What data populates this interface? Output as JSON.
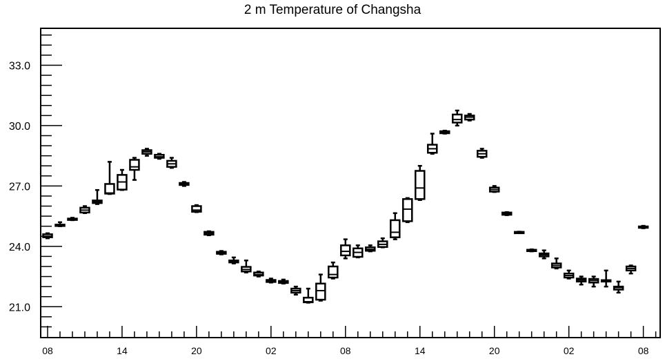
{
  "chart_data": {
    "type": "boxplot",
    "title": "2 m Temperature of Changsha",
    "xlabel": "",
    "ylabel": "",
    "ylim": [
      19.5,
      34.8
    ],
    "yticks": [
      21.0,
      24.0,
      27.0,
      30.0,
      33.0
    ],
    "ytick_labels": [
      "21.0",
      "24.0",
      "27.0",
      "30.0",
      "33.0"
    ],
    "x_hour_range": [
      -0.5,
      49.3
    ],
    "xticks": [
      0,
      6,
      12,
      18,
      24,
      30,
      36,
      42,
      48
    ],
    "xtick_labels": [
      "08",
      "14",
      "20",
      "02",
      "08",
      "14",
      "20",
      "02",
      "08"
    ],
    "grid": false,
    "boxes": [
      {
        "hour": 0,
        "min": 24.4,
        "q1": 24.45,
        "median": 24.5,
        "q3": 24.6,
        "max": 24.65
      },
      {
        "hour": 1,
        "min": 25.0,
        "q1": 25.02,
        "median": 25.05,
        "q3": 25.08,
        "max": 25.2
      },
      {
        "hour": 2,
        "min": 25.3,
        "q1": 25.33,
        "median": 25.35,
        "q3": 25.38,
        "max": 25.42
      },
      {
        "hour": 3,
        "min": 25.65,
        "q1": 25.68,
        "median": 25.8,
        "q3": 25.92,
        "max": 26.0
      },
      {
        "hour": 4,
        "min": 26.1,
        "q1": 26.15,
        "median": 26.22,
        "q3": 26.28,
        "max": 26.8
      },
      {
        "hour": 5,
        "min": 26.6,
        "q1": 26.62,
        "median": 26.65,
        "q3": 27.1,
        "max": 28.2
      },
      {
        "hour": 6,
        "min": 26.8,
        "q1": 26.82,
        "median": 27.2,
        "q3": 27.55,
        "max": 27.8
      },
      {
        "hour": 7,
        "min": 27.3,
        "q1": 27.8,
        "median": 27.95,
        "q3": 28.3,
        "max": 28.4
      },
      {
        "hour": 8,
        "min": 28.5,
        "q1": 28.6,
        "median": 28.7,
        "q3": 28.78,
        "max": 28.85
      },
      {
        "hour": 9,
        "min": 28.35,
        "q1": 28.4,
        "median": 28.45,
        "q3": 28.55,
        "max": 28.6
      },
      {
        "hour": 10,
        "min": 27.9,
        "q1": 27.95,
        "median": 28.1,
        "q3": 28.25,
        "max": 28.4
      },
      {
        "hour": 11,
        "min": 27.0,
        "q1": 27.05,
        "median": 27.1,
        "q3": 27.15,
        "max": 27.2
      },
      {
        "hour": 12,
        "min": 25.7,
        "q1": 25.72,
        "median": 25.8,
        "q3": 26.0,
        "max": 26.05
      },
      {
        "hour": 13,
        "min": 24.55,
        "q1": 24.58,
        "median": 24.65,
        "q3": 24.72,
        "max": 24.75
      },
      {
        "hour": 14,
        "min": 23.6,
        "q1": 23.63,
        "median": 23.7,
        "q3": 23.73,
        "max": 23.77
      },
      {
        "hour": 15,
        "min": 23.15,
        "q1": 23.2,
        "median": 23.25,
        "q3": 23.3,
        "max": 23.45
      },
      {
        "hour": 16,
        "min": 22.7,
        "q1": 22.75,
        "median": 22.85,
        "q3": 22.98,
        "max": 23.3
      },
      {
        "hour": 17,
        "min": 22.5,
        "q1": 22.55,
        "median": 22.6,
        "q3": 22.7,
        "max": 22.75
      },
      {
        "hour": 18,
        "min": 22.2,
        "q1": 22.23,
        "median": 22.28,
        "q3": 22.33,
        "max": 22.4
      },
      {
        "hour": 19,
        "min": 22.15,
        "q1": 22.18,
        "median": 22.22,
        "q3": 22.28,
        "max": 22.35
      },
      {
        "hour": 20,
        "min": 21.6,
        "q1": 21.7,
        "median": 21.8,
        "q3": 21.9,
        "max": 22.0
      },
      {
        "hour": 21,
        "min": 21.2,
        "q1": 21.22,
        "median": 21.25,
        "q3": 21.45,
        "max": 21.9
      },
      {
        "hour": 22,
        "min": 21.3,
        "q1": 21.35,
        "median": 21.8,
        "q3": 22.15,
        "max": 22.6
      },
      {
        "hour": 23,
        "min": 22.4,
        "q1": 22.45,
        "median": 22.6,
        "q3": 23.0,
        "max": 23.2
      },
      {
        "hour": 24,
        "min": 23.4,
        "q1": 23.55,
        "median": 23.75,
        "q3": 24.05,
        "max": 24.35
      },
      {
        "hour": 25,
        "min": 23.45,
        "q1": 23.48,
        "median": 23.7,
        "q3": 23.9,
        "max": 24.05
      },
      {
        "hour": 26,
        "min": 23.75,
        "q1": 23.78,
        "median": 23.85,
        "q3": 23.95,
        "max": 24.05
      },
      {
        "hour": 27,
        "min": 23.95,
        "q1": 23.97,
        "median": 24.1,
        "q3": 24.25,
        "max": 24.4
      },
      {
        "hour": 28,
        "min": 24.35,
        "q1": 24.45,
        "median": 24.7,
        "q3": 25.3,
        "max": 25.65
      },
      {
        "hour": 29,
        "min": 25.2,
        "q1": 25.25,
        "median": 25.85,
        "q3": 26.35,
        "max": 26.4
      },
      {
        "hour": 30,
        "min": 26.3,
        "q1": 26.35,
        "median": 26.9,
        "q3": 27.75,
        "max": 28.0
      },
      {
        "hour": 31,
        "min": 28.6,
        "q1": 28.65,
        "median": 28.85,
        "q3": 29.05,
        "max": 29.6
      },
      {
        "hour": 32,
        "min": 29.6,
        "q1": 29.62,
        "median": 29.68,
        "q3": 29.72,
        "max": 29.75
      },
      {
        "hour": 33,
        "min": 30.0,
        "q1": 30.15,
        "median": 30.3,
        "q3": 30.55,
        "max": 30.75
      },
      {
        "hour": 34,
        "min": 30.25,
        "q1": 30.3,
        "median": 30.42,
        "q3": 30.5,
        "max": 30.58
      },
      {
        "hour": 35,
        "min": 28.4,
        "q1": 28.45,
        "median": 28.6,
        "q3": 28.75,
        "max": 28.85
      },
      {
        "hour": 36,
        "min": 26.7,
        "q1": 26.72,
        "median": 26.82,
        "q3": 26.92,
        "max": 27.0
      },
      {
        "hour": 37,
        "min": 25.55,
        "q1": 25.57,
        "median": 25.62,
        "q3": 25.68,
        "max": 25.7
      },
      {
        "hour": 38,
        "min": 24.68,
        "q1": 24.69,
        "median": 24.7,
        "q3": 24.72,
        "max": 24.73
      },
      {
        "hour": 39,
        "min": 23.75,
        "q1": 23.77,
        "median": 23.8,
        "q3": 23.83,
        "max": 23.85
      },
      {
        "hour": 40,
        "min": 23.4,
        "q1": 23.5,
        "median": 23.58,
        "q3": 23.65,
        "max": 23.8
      },
      {
        "hour": 41,
        "min": 22.9,
        "q1": 22.95,
        "median": 23.05,
        "q3": 23.15,
        "max": 23.4
      },
      {
        "hour": 42,
        "min": 22.4,
        "q1": 22.45,
        "median": 22.55,
        "q3": 22.65,
        "max": 22.8
      },
      {
        "hour": 43,
        "min": 22.1,
        "q1": 22.25,
        "median": 22.33,
        "q3": 22.4,
        "max": 22.5
      },
      {
        "hour": 44,
        "min": 22.0,
        "q1": 22.2,
        "median": 22.3,
        "q3": 22.38,
        "max": 22.5
      },
      {
        "hour": 45,
        "min": 22.0,
        "q1": 22.25,
        "median": 22.3,
        "q3": 22.32,
        "max": 22.8
      },
      {
        "hour": 46,
        "min": 21.7,
        "q1": 21.85,
        "median": 21.95,
        "q3": 22.0,
        "max": 22.25
      },
      {
        "hour": 47,
        "min": 22.65,
        "q1": 22.8,
        "median": 22.9,
        "q3": 23.0,
        "max": 23.05
      },
      {
        "hour": 48,
        "min": 24.9,
        "q1": 24.93,
        "median": 24.96,
        "q3": 24.99,
        "max": 25.02
      }
    ]
  }
}
